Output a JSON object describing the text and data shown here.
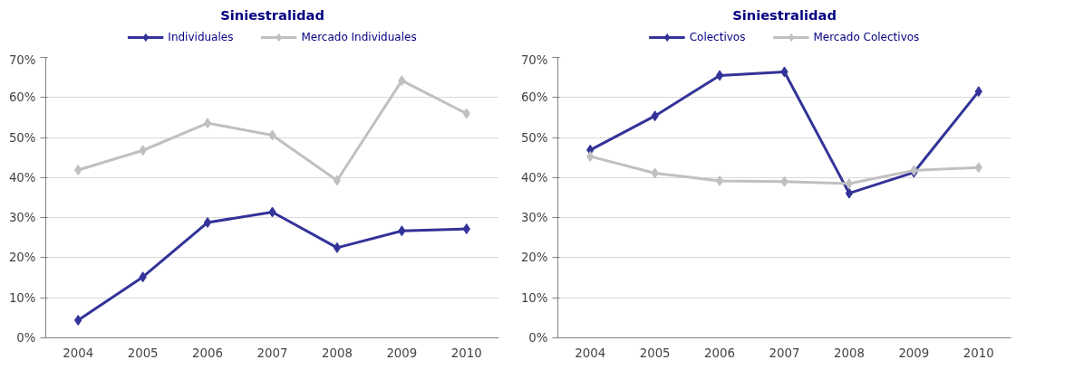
{
  "chart_data": [
    {
      "type": "line",
      "title": "Siniestralidad",
      "categories": [
        "2004",
        "2005",
        "2006",
        "2007",
        "2008",
        "2009",
        "2010"
      ],
      "series": [
        {
          "name": "Individuales",
          "color": "#333399",
          "values": [
            4.4,
            15.2,
            28.8,
            31.4,
            22.5,
            26.7,
            27.2
          ]
        },
        {
          "name": "Mercado Individuales",
          "color": "#c0c0c0",
          "values": [
            41.9,
            46.8,
            53.6,
            50.6,
            39.3,
            64.2,
            56.0
          ]
        }
      ],
      "ylim": [
        0,
        70
      ],
      "yticks": [
        {
          "value": 0,
          "label": "0%"
        },
        {
          "value": 10,
          "label": "10%"
        },
        {
          "value": 20,
          "label": "20%"
        },
        {
          "value": 30,
          "label": "30%"
        },
        {
          "value": 40,
          "label": "40%"
        },
        {
          "value": 50,
          "label": "50%"
        },
        {
          "value": 60,
          "label": "60%"
        },
        {
          "value": 70,
          "label": "70%"
        }
      ],
      "grid": "y",
      "legend": "top",
      "marker": "diamond",
      "line_style": "solid"
    },
    {
      "type": "line",
      "title": "Siniestralidad",
      "categories": [
        "2004",
        "2005",
        "2006",
        "2007",
        "2008",
        "2009",
        "2010"
      ],
      "series": [
        {
          "name": "Colectivos",
          "color": "#333399",
          "values": [
            46.9,
            55.4,
            65.5,
            66.4,
            36.1,
            41.3,
            61.5
          ]
        },
        {
          "name": "Mercado Colectivos",
          "color": "#c0c0c0",
          "values": [
            45.3,
            41.1,
            39.2,
            39.0,
            38.5,
            41.8,
            42.5
          ]
        }
      ],
      "ylim": [
        0,
        70
      ],
      "yticks": [
        {
          "value": 0,
          "label": "0%"
        },
        {
          "value": 10,
          "label": "10%"
        },
        {
          "value": 20,
          "label": "20%"
        },
        {
          "value": 30,
          "label": "30%"
        },
        {
          "value": 40,
          "label": "40%"
        },
        {
          "value": 50,
          "label": "50%"
        },
        {
          "value": 60,
          "label": "60%"
        },
        {
          "value": 70,
          "label": "70%"
        }
      ],
      "grid": "y",
      "legend": "top",
      "marker": "diamond",
      "line_style": "solid"
    }
  ]
}
